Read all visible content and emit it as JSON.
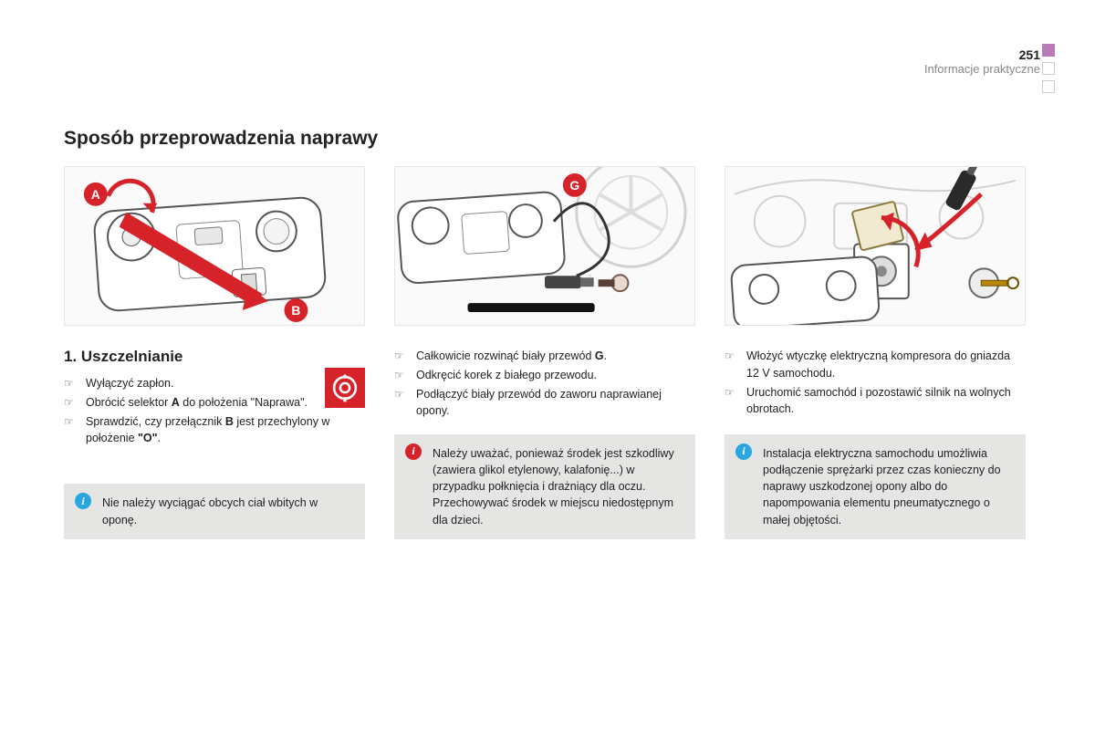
{
  "page_number": "251",
  "section_label": "Informacje praktyczne",
  "main_title": "Sposób przeprowadzenia naprawy",
  "subtitle": "1. Uszczelnianie",
  "markers": {
    "A": "A",
    "B": "B",
    "G": "G"
  },
  "colors": {
    "accent_purple": "#b77cb7",
    "action_red": "#d6232a",
    "info_blue": "#2aa7e0",
    "info_bg": "#e5e5e3",
    "text_muted": "#888888"
  },
  "col1_steps": [
    "Wyłączyć zapłon.",
    "Obrócić selektor <b>A</b> do położenia \"Naprawa\".",
    "Sprawdzić, czy przełącznik <b>B</b> jest przechylony w położenie <b>\"O\"</b>."
  ],
  "col2_steps": [
    "Całkowicie rozwinąć biały przewód <b>G</b>.",
    "Odkręcić korek z białego przewodu.",
    "Podłączyć biały przewód do zaworu naprawianej opony."
  ],
  "col3_steps": [
    "Włożyć wtyczkę elektryczną kompresora do gniazda 12 V samochodu.",
    "Uruchomić samochód i pozostawić silnik na wolnych obrotach."
  ],
  "note1": "Nie należy wyciągać obcych ciał wbitych w oponę.",
  "note2": "Należy uważać, ponieważ środek jest szkodliwy (zawiera glikol etylenowy, kalafonię...) w przypadku połknięcia i drażniący dla oczu.\nPrzechowywać środek w miejscu niedostępnym dla dzieci.",
  "note3": "Instalacja elektryczna samochodu umożliwia podłączenie sprężarki przez czas konieczny do naprawy uszkodzonej opony albo do napompowania elementu pneumatycznego o małej objętości."
}
